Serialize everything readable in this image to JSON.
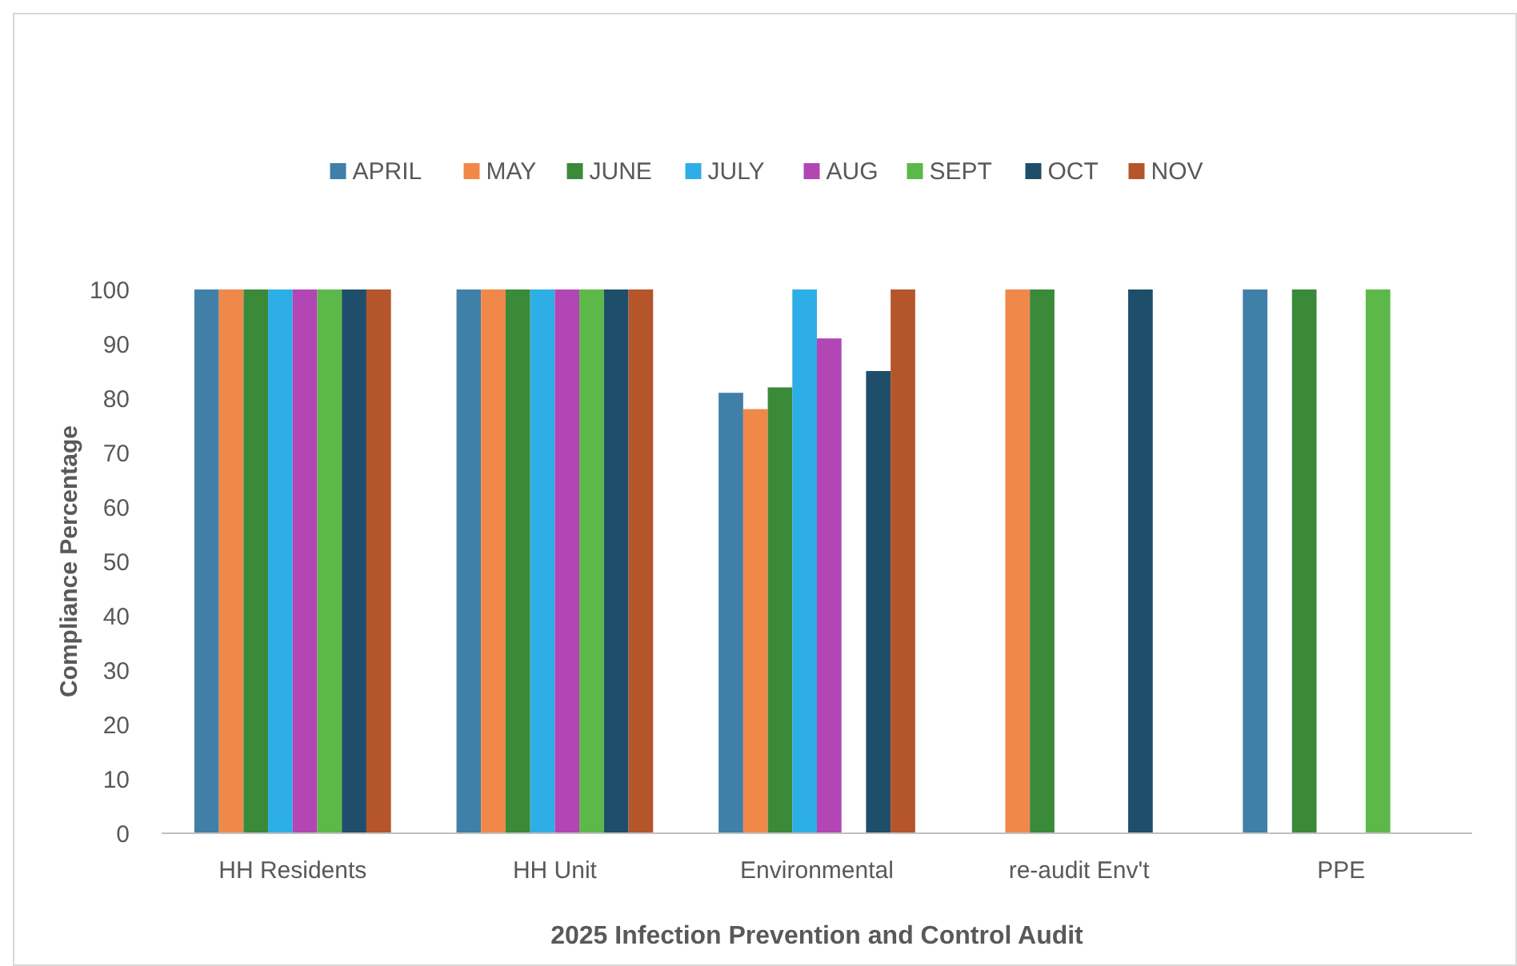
{
  "chart_data": {
    "type": "bar",
    "xlabel": "2025 Infection Prevention and Control Audit",
    "ylabel": "Compliance Percentage",
    "categories": [
      "HH Residents",
      "HH Unit",
      "Environmental",
      "re-audit Env't",
      "PPE"
    ],
    "ylim": [
      0,
      100
    ],
    "yticks": [
      0,
      10,
      20,
      30,
      40,
      50,
      60,
      70,
      80,
      90,
      100
    ],
    "grid": false,
    "legend": "top",
    "series": [
      {
        "name": "APRIL",
        "color": "#3f7fa8",
        "values": [
          100,
          100,
          81,
          null,
          100
        ]
      },
      {
        "name": "MAY",
        "color": "#f0884a",
        "values": [
          100,
          100,
          78,
          100,
          null
        ]
      },
      {
        "name": "JUNE",
        "color": "#3a8a3a",
        "values": [
          100,
          100,
          82,
          100,
          100
        ]
      },
      {
        "name": "JULY",
        "color": "#2eaee6",
        "values": [
          100,
          100,
          100,
          null,
          null
        ]
      },
      {
        "name": "AUG",
        "color": "#b146b4",
        "values": [
          100,
          100,
          91,
          null,
          null
        ]
      },
      {
        "name": "SEPT",
        "color": "#5cb848",
        "values": [
          100,
          100,
          null,
          null,
          100
        ]
      },
      {
        "name": "OCT",
        "color": "#1f4e6a",
        "values": [
          100,
          100,
          85,
          100,
          null
        ]
      },
      {
        "name": "NOV",
        "color": "#b5552a",
        "values": [
          100,
          100,
          100,
          null,
          null
        ]
      }
    ]
  }
}
